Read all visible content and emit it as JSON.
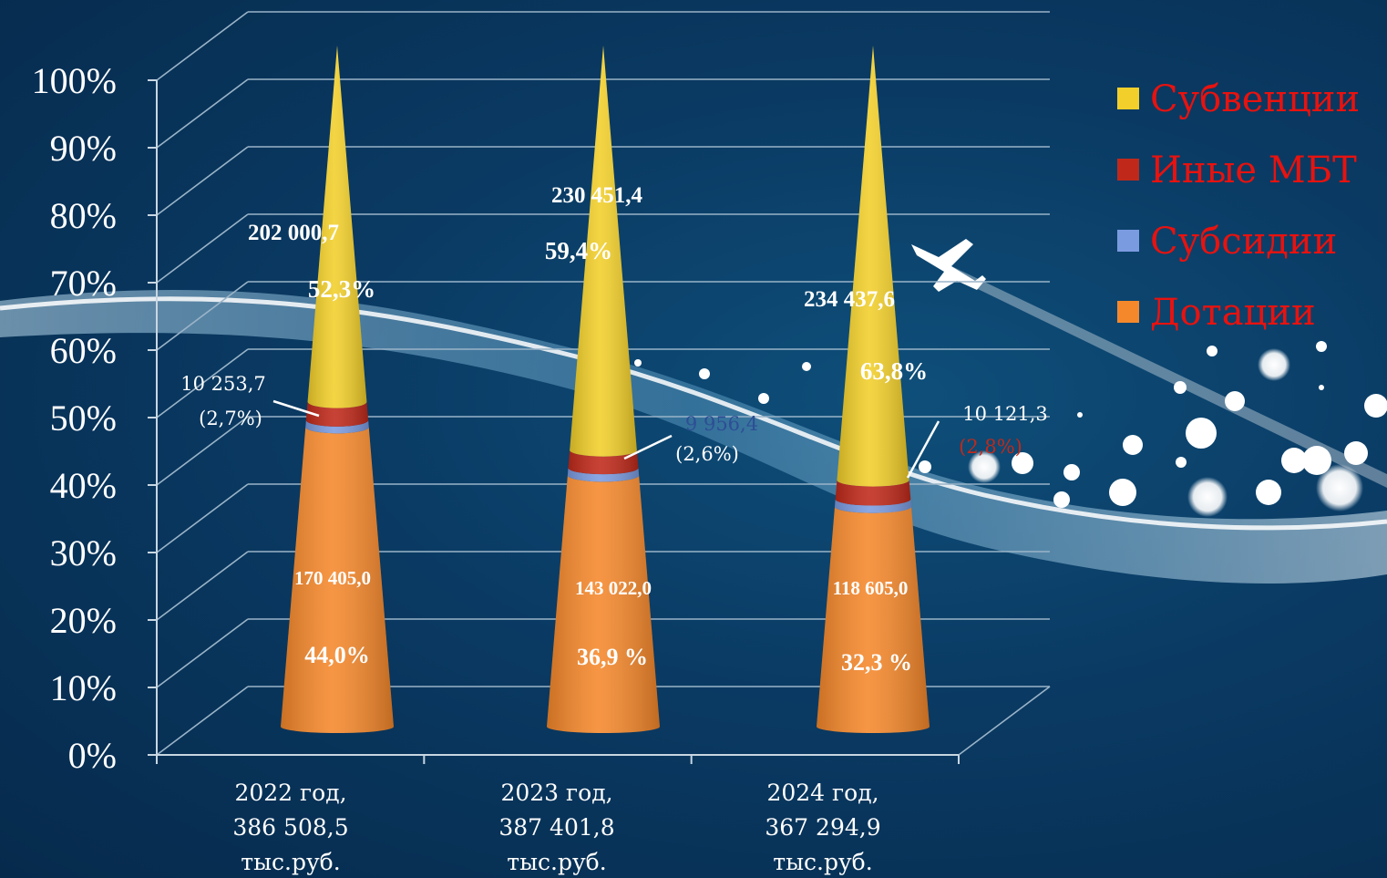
{
  "chart_data": {
    "type": "bar",
    "stacked": true,
    "normalized": true,
    "ylim": [
      0,
      100
    ],
    "yticks": [
      "0%",
      "10%",
      "20%",
      "30%",
      "40%",
      "50%",
      "60%",
      "70%",
      "80%",
      "90%",
      "100%"
    ],
    "categories": [
      [
        "2022 год,",
        "386 508,5",
        "тыс.руб."
      ],
      [
        "2023 год,",
        "387 401,8",
        "тыс.руб."
      ],
      [
        "2024 год,",
        "367 294,9",
        "тыс.руб."
      ]
    ],
    "legend_position": "right",
    "series": [
      {
        "name": "Дотации",
        "color": "#f5882b",
        "values": [
          44.0,
          36.9,
          32.3
        ],
        "amount_labels": [
          "170 405,0",
          "143 022,0",
          "118 605,0"
        ],
        "percent_labels": [
          "44,0%",
          "36,9 %",
          "32,3 %"
        ]
      },
      {
        "name": "Субсидии",
        "color": "#7b9be0",
        "values": [
          1.0,
          1.1,
          1.1
        ],
        "amount_labels": [
          "",
          "",
          ""
        ],
        "percent_labels": [
          "",
          "",
          ""
        ]
      },
      {
        "name": "Иные МБТ",
        "color": "#c0291a",
        "values": [
          2.7,
          2.6,
          2.8
        ],
        "amount_labels": [
          "10 253,7",
          "9 956,4",
          "10 121,3"
        ],
        "percent_labels": [
          "(2,7%)",
          "(2,6%)",
          "(2,8%)"
        ]
      },
      {
        "name": "Субвенции",
        "color": "#f2cf2a",
        "values": [
          52.3,
          59.4,
          63.8
        ],
        "amount_labels": [
          "202 000,7",
          "230 451,4",
          "234 437,6"
        ],
        "percent_labels": [
          "52,3%",
          "59,4%",
          "63,8%"
        ]
      }
    ],
    "legend": [
      {
        "name": "Субвенции",
        "color": "#f2cf2a"
      },
      {
        "name": "Иные МБТ",
        "color": "#c0291a"
      },
      {
        "name": "Субсидии",
        "color": "#7b9be0"
      },
      {
        "name": "Дотации",
        "color": "#f5882b"
      }
    ]
  }
}
